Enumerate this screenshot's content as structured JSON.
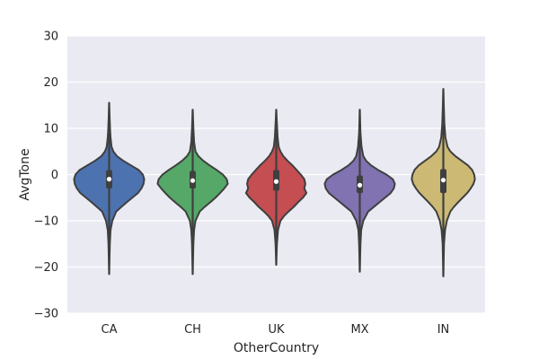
{
  "chart_data": {
    "type": "violin",
    "title": "",
    "xlabel": "OtherCountry",
    "ylabel": "AvgTone",
    "ylim": [
      -30,
      30
    ],
    "yticks": [
      -30,
      -20,
      -10,
      0,
      10,
      20,
      30
    ],
    "grid": true,
    "legend": "none",
    "background": "#eaeaf2",
    "categories": [
      "CA",
      "CH",
      "UK",
      "MX",
      "IN"
    ],
    "series": [
      {
        "category": "CA",
        "color": "#4c72b0",
        "min": -21.5,
        "max": 15.5,
        "q1": -3,
        "median": -1,
        "q3": 1,
        "density": [
          [
            -21.5,
            0.0
          ],
          [
            -15,
            0.02
          ],
          [
            -12,
            0.04
          ],
          [
            -10,
            0.09
          ],
          [
            -8,
            0.2
          ],
          [
            -7,
            0.35
          ],
          [
            -6,
            0.5
          ],
          [
            -5,
            0.66
          ],
          [
            -4,
            0.82
          ],
          [
            -3,
            0.92
          ],
          [
            -2,
            0.98
          ],
          [
            -1,
            1.0
          ],
          [
            0,
            0.96
          ],
          [
            1,
            0.84
          ],
          [
            2,
            0.62
          ],
          [
            3,
            0.4
          ],
          [
            4,
            0.22
          ],
          [
            5,
            0.12
          ],
          [
            6,
            0.07
          ],
          [
            8,
            0.04
          ],
          [
            10,
            0.025
          ],
          [
            15.5,
            0.0
          ]
        ]
      },
      {
        "category": "CH",
        "color": "#55a868",
        "min": -21.5,
        "max": 14,
        "q1": -3,
        "median": -1.3,
        "q3": 0.8,
        "density": [
          [
            -21.5,
            0.0
          ],
          [
            -15,
            0.02
          ],
          [
            -12,
            0.04
          ],
          [
            -10,
            0.08
          ],
          [
            -8,
            0.2
          ],
          [
            -7,
            0.34
          ],
          [
            -6,
            0.5
          ],
          [
            -5,
            0.65
          ],
          [
            -4,
            0.78
          ],
          [
            -3,
            0.9
          ],
          [
            -2,
            1.0
          ],
          [
            -1,
            0.97
          ],
          [
            0,
            0.86
          ],
          [
            1,
            0.68
          ],
          [
            2,
            0.48
          ],
          [
            3,
            0.3
          ],
          [
            4,
            0.16
          ],
          [
            5,
            0.08
          ],
          [
            7,
            0.04
          ],
          [
            10,
            0.02
          ],
          [
            14,
            0.0
          ]
        ]
      },
      {
        "category": "UK",
        "color": "#c44e52",
        "min": -19.5,
        "max": 14,
        "q1": -3.5,
        "median": -1.5,
        "q3": 1,
        "density": [
          [
            -19.5,
            0.0
          ],
          [
            -15,
            0.02
          ],
          [
            -12,
            0.05
          ],
          [
            -10,
            0.12
          ],
          [
            -9,
            0.22
          ],
          [
            -8,
            0.35
          ],
          [
            -7,
            0.5
          ],
          [
            -6,
            0.62
          ],
          [
            -5,
            0.76
          ],
          [
            -4,
            0.86
          ],
          [
            -3,
            0.8
          ],
          [
            -2,
            0.83
          ],
          [
            -1,
            0.8
          ],
          [
            0,
            0.7
          ],
          [
            1,
            0.58
          ],
          [
            2,
            0.46
          ],
          [
            3,
            0.32
          ],
          [
            4,
            0.2
          ],
          [
            5,
            0.12
          ],
          [
            6,
            0.07
          ],
          [
            8,
            0.04
          ],
          [
            11,
            0.02
          ],
          [
            14,
            0.0
          ]
        ]
      },
      {
        "category": "MX",
        "color": "#8172b2",
        "min": -21,
        "max": 14,
        "q1": -4,
        "median": -2.3,
        "q3": -0.2,
        "density": [
          [
            -21,
            0.0
          ],
          [
            -15,
            0.02
          ],
          [
            -12,
            0.04
          ],
          [
            -10,
            0.1
          ],
          [
            -8,
            0.24
          ],
          [
            -7,
            0.4
          ],
          [
            -6,
            0.56
          ],
          [
            -5,
            0.72
          ],
          [
            -4,
            0.88
          ],
          [
            -3,
            0.97
          ],
          [
            -2,
            1.0
          ],
          [
            -1,
            0.94
          ],
          [
            0,
            0.76
          ],
          [
            1,
            0.52
          ],
          [
            2,
            0.32
          ],
          [
            3,
            0.18
          ],
          [
            4,
            0.1
          ],
          [
            6,
            0.05
          ],
          [
            9,
            0.02
          ],
          [
            14,
            0.0
          ]
        ]
      },
      {
        "category": "IN",
        "color": "#ccb974",
        "min": -22,
        "max": 18.5,
        "q1": -4,
        "median": -1.2,
        "q3": 1.2,
        "density": [
          [
            -22,
            0.0
          ],
          [
            -15,
            0.02
          ],
          [
            -12,
            0.05
          ],
          [
            -10,
            0.1
          ],
          [
            -8,
            0.2
          ],
          [
            -7,
            0.3
          ],
          [
            -6,
            0.42
          ],
          [
            -5,
            0.55
          ],
          [
            -4,
            0.68
          ],
          [
            -3,
            0.78
          ],
          [
            -2,
            0.86
          ],
          [
            -1,
            0.9
          ],
          [
            0,
            0.88
          ],
          [
            1,
            0.82
          ],
          [
            2,
            0.7
          ],
          [
            3,
            0.52
          ],
          [
            4,
            0.34
          ],
          [
            5,
            0.2
          ],
          [
            6,
            0.12
          ],
          [
            8,
            0.06
          ],
          [
            11,
            0.03
          ],
          [
            18.5,
            0.0
          ]
        ]
      }
    ]
  }
}
